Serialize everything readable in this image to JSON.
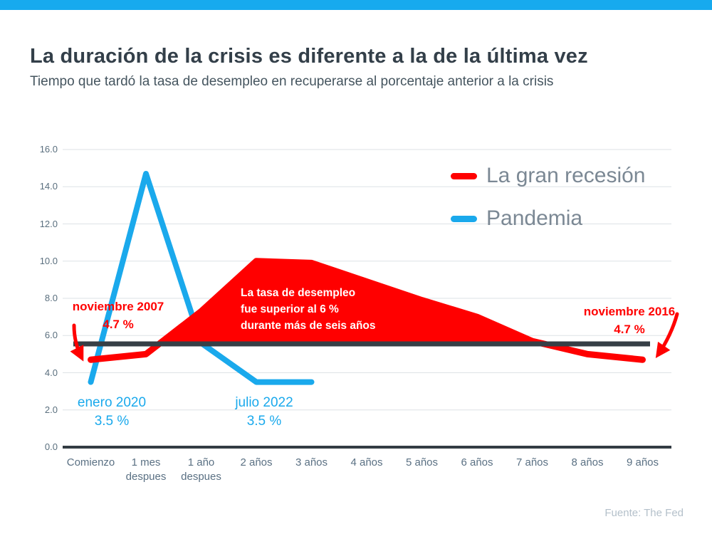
{
  "header": {
    "title": "La duración de la crisis es diferente a la de la última vez",
    "subtitle": "Tiempo que tardó la tasa de desempleo en recuperarse al porcentaje anterior a la crisis"
  },
  "legend": [
    {
      "label": "La gran recesión",
      "color": "#ff0000"
    },
    {
      "label": "Pandemia",
      "color": "#1aa9ec"
    }
  ],
  "annotations": {
    "recession_start": "noviembre 2007\n4.7 %",
    "recession_end": "noviembre 2016\n4.7 %",
    "pandemic_start": "enero 2020\n3.5 %",
    "pandemic_end": "julio 2022\n3.5 %",
    "area_note": "La tasa de desempleo\nfue superior al 6 %\ndurante más de seis años"
  },
  "footer": {
    "source": "Fuente: The Fed"
  },
  "chart_data": {
    "type": "line",
    "x_categories": [
      "Comienzo",
      "1 mes\ndespues",
      "1 año\ndespues",
      "2 años",
      "3 años",
      "4 años",
      "5 años",
      "6 años",
      "7 años",
      "8 años",
      "9 años"
    ],
    "ylim": [
      0,
      16
    ],
    "y_tick_step": 2,
    "y_tick_labels": [
      "0.0",
      "2.0",
      "4.0",
      "6.0",
      "8.0",
      "10.0",
      "12.0",
      "14.0",
      "16.0"
    ],
    "grid": true,
    "legend_position": "top-right",
    "series": [
      {
        "name": "La gran recesión",
        "color": "#ff0000",
        "fill_above_reference": true,
        "values": [
          4.7,
          5.0,
          7.3,
          10.0,
          9.9,
          8.9,
          7.9,
          7.0,
          5.7,
          5.0,
          4.7
        ]
      },
      {
        "name": "Pandemia",
        "color": "#1aa9ec",
        "fill_above_reference": false,
        "values": [
          3.5,
          14.7,
          5.6,
          3.5,
          3.5
        ]
      }
    ],
    "reference_line": {
      "value": 5.55,
      "color": "#363f46"
    }
  }
}
